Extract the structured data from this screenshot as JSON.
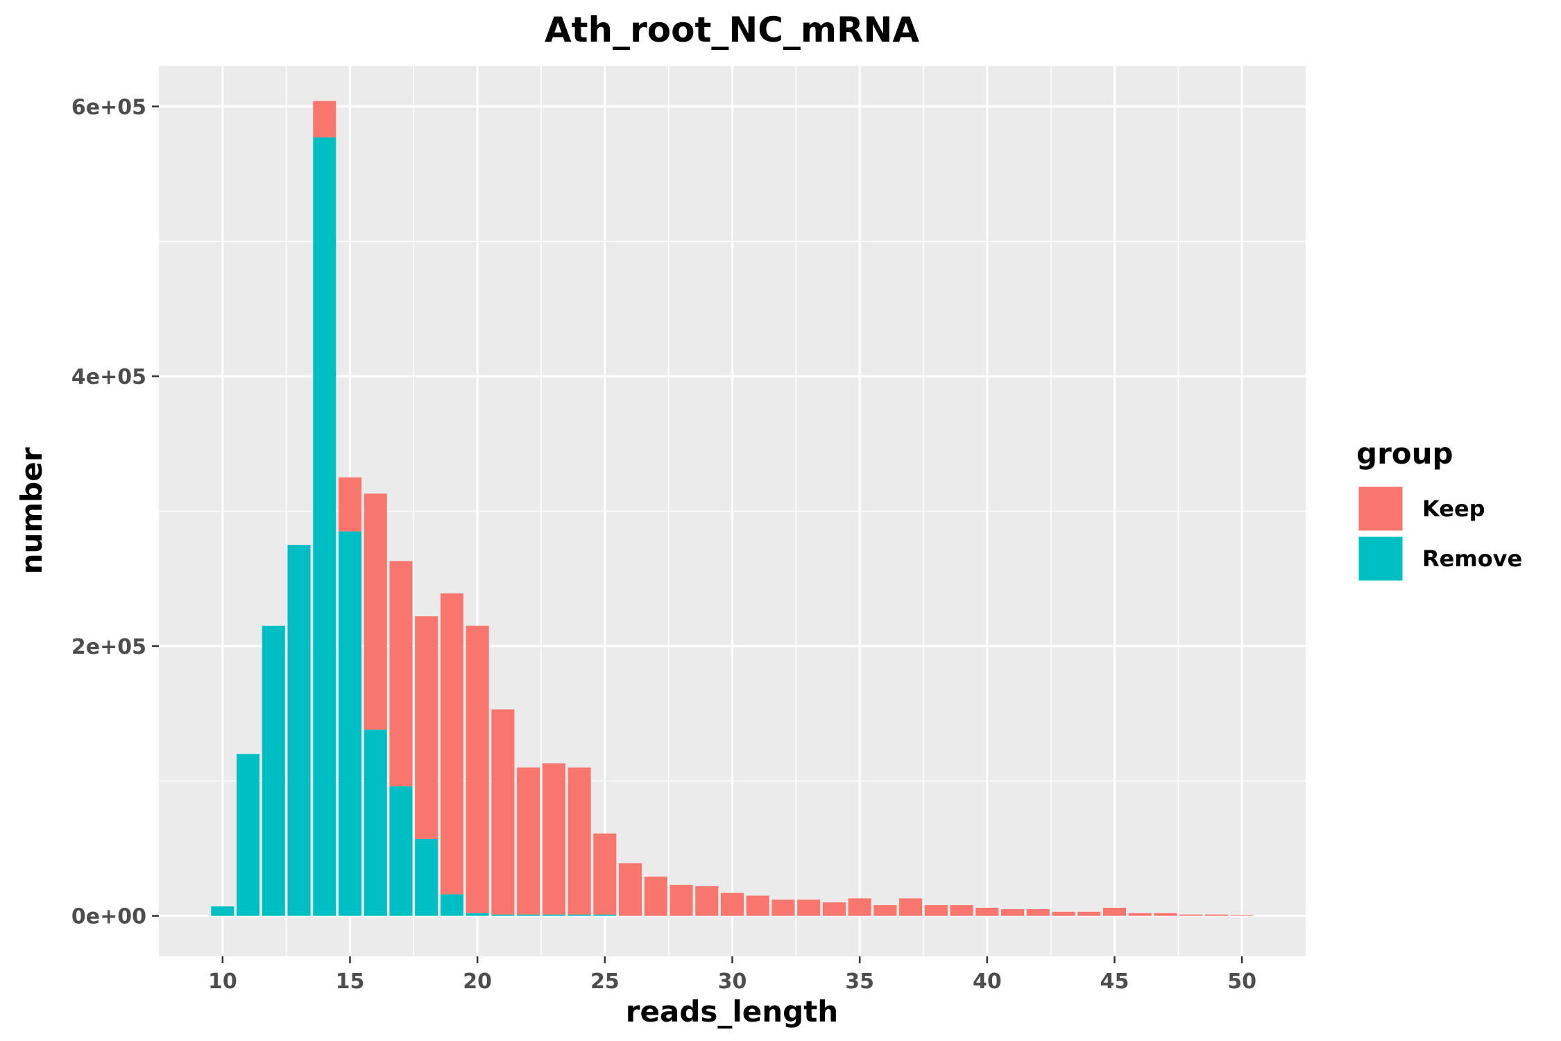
{
  "chart_data": {
    "type": "bar",
    "stacked": true,
    "title": "Ath_root_NC_mRNA",
    "xlabel": "reads_length",
    "ylabel": "number",
    "xlim": [
      7.5,
      52.5
    ],
    "ylim": [
      -30000,
      630000
    ],
    "x_ticks": [
      10,
      15,
      20,
      25,
      30,
      35,
      40,
      45,
      50
    ],
    "y_ticks": [
      0,
      200000,
      400000,
      600000
    ],
    "y_tick_labels": [
      "0e+00",
      "2e+05",
      "4e+05",
      "6e+05"
    ],
    "grid": true,
    "legend_position": "right",
    "legend_title": "group",
    "x": [
      10,
      11,
      12,
      13,
      14,
      15,
      16,
      17,
      18,
      19,
      20,
      21,
      22,
      23,
      24,
      25,
      26,
      27,
      28,
      29,
      30,
      31,
      32,
      33,
      34,
      35,
      36,
      37,
      38,
      39,
      40,
      41,
      42,
      43,
      44,
      45,
      46,
      47,
      48,
      49,
      50
    ],
    "series": [
      {
        "name": "Remove",
        "color": "#00BFC4",
        "values": [
          7000,
          120000,
          215000,
          275000,
          577000,
          285000,
          138000,
          96000,
          57000,
          16000,
          2000,
          1000,
          1000,
          1000,
          1000,
          1000,
          0,
          0,
          0,
          0,
          0,
          0,
          0,
          0,
          0,
          0,
          0,
          0,
          0,
          0,
          0,
          0,
          0,
          0,
          0,
          0,
          0,
          0,
          0,
          0,
          0
        ]
      },
      {
        "name": "Keep",
        "color": "#F8766D",
        "values": [
          0,
          0,
          0,
          0,
          27000,
          40000,
          175000,
          167000,
          165000,
          223000,
          213000,
          152000,
          109000,
          112000,
          109000,
          60000,
          39000,
          29000,
          23000,
          22000,
          17000,
          15000,
          12000,
          12000,
          10000,
          13000,
          8000,
          13000,
          8000,
          8000,
          6000,
          5000,
          5000,
          3000,
          3000,
          6000,
          2000,
          2000,
          1000,
          1000,
          500
        ]
      }
    ]
  }
}
